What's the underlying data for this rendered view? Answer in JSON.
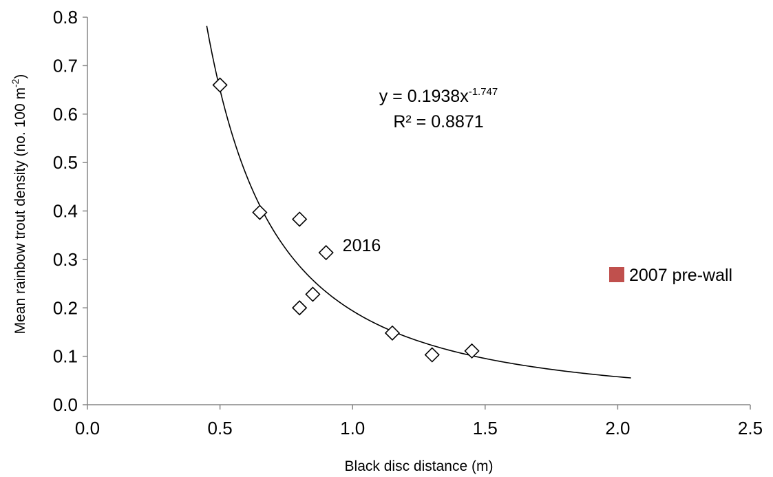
{
  "chart_data": {
    "type": "scatter",
    "xlabel": "Black disc distance (m)",
    "ylabel_main": "Mean rainbow trout density (no. 100 m",
    "ylabel_sup": "-2",
    "ylabel_close": ")",
    "xlim": [
      0.0,
      2.5
    ],
    "ylim": [
      0.0,
      0.8
    ],
    "x_ticks": [
      0.0,
      0.5,
      1.0,
      1.5,
      2.0,
      2.5
    ],
    "y_ticks": [
      0.0,
      0.1,
      0.2,
      0.3,
      0.4,
      0.5,
      0.6,
      0.7,
      0.8
    ],
    "x_tick_labels": [
      "0.0",
      "0.5",
      "1.0",
      "1.5",
      "2.0",
      "2.5"
    ],
    "y_tick_labels": [
      "0.0",
      "0.1",
      "0.2",
      "0.3",
      "0.4",
      "0.5",
      "0.6",
      "0.7",
      "0.8"
    ],
    "grid": false,
    "series": [
      {
        "marker": "open-diamond",
        "color": "#000000",
        "points": [
          {
            "x": 0.5,
            "y": 0.66
          },
          {
            "x": 0.65,
            "y": 0.397
          },
          {
            "x": 0.8,
            "y": 0.383
          },
          {
            "x": 0.9,
            "y": 0.314
          },
          {
            "x": 0.8,
            "y": 0.2
          },
          {
            "x": 0.85,
            "y": 0.228
          },
          {
            "x": 1.15,
            "y": 0.148
          },
          {
            "x": 1.3,
            "y": 0.103
          },
          {
            "x": 1.45,
            "y": 0.111
          }
        ]
      }
    ],
    "trendline": {
      "type": "power",
      "a": 0.1938,
      "b": -1.747,
      "x_range": [
        0.45,
        2.05
      ],
      "color": "#000000"
    },
    "annotations": {
      "equation_main": "y = 0.1938x",
      "equation_exp": "-1.747",
      "r_squared": "R² = 0.8871",
      "point_label": "2016",
      "point_label_anchor": {
        "x": 0.9,
        "y": 0.314
      }
    },
    "legend": {
      "position": "right",
      "entries": [
        {
          "label": "2007 pre-wall",
          "color": "#c0504d",
          "marker": "square"
        }
      ]
    }
  }
}
